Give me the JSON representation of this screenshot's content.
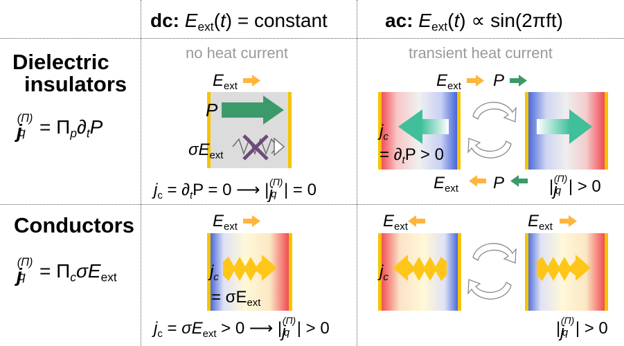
{
  "header": {
    "dc_label": "dc:",
    "dc_rest": " = constant",
    "ac_label": "ac:",
    "ac_rest": " ∝ sin(2πft)"
  },
  "rows": {
    "dielectric": {
      "title_line1": "Dielectric",
      "title_line2": "insulators",
      "dc_note": "no heat current",
      "ac_note": "transient heat current",
      "dc_bottom_left": "= ∂",
      "dc_bottom_mid": "P = 0  ⟶  |",
      "dc_bottom_right": "| = 0",
      "ac_bottom_right": "| > 0",
      "ac_jc_eq": "= ∂",
      "ac_jc_tail": "P > 0"
    },
    "conductors": {
      "title": "Conductors",
      "dc_bottom_mid": " > 0  ⟶  |",
      "dc_bottom_right": "| > 0",
      "ac_bottom_right": "| > 0",
      "jc_eq": "= σE"
    }
  },
  "colors": {
    "yellow_electrode": "#f5c400",
    "orange_arrow": "#ffb43c",
    "green_arrow": "#3c9a6a",
    "red_gradient": "#f0404a",
    "blue_gradient": "#3a5cd8",
    "grey_box": "#dcdcdc",
    "heat_arrow": "#ffc61a",
    "cross": "#6e4a7a"
  },
  "icons": [
    "field-arrow-icon",
    "polarization-arrow-icon",
    "zigzag-current-icon",
    "cross-out-icon",
    "cycle-arrows-icon",
    "heat-arrow-icon"
  ]
}
